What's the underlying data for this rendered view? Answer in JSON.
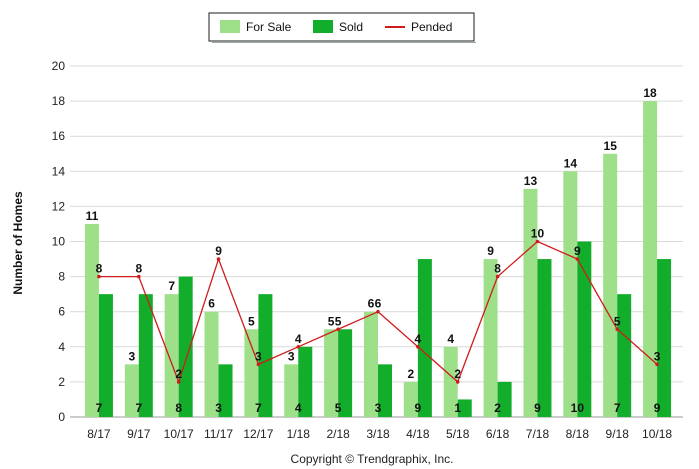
{
  "chart_data": {
    "type": "bar",
    "ylabel": "Number of Homes",
    "xlabel": "",
    "ylim": [
      0,
      20
    ],
    "y_ticks": [
      0,
      2,
      4,
      6,
      8,
      10,
      12,
      14,
      16,
      18,
      20
    ],
    "grid": "horizontal",
    "legend_position": "top-center",
    "categories": [
      "8/17",
      "9/17",
      "10/17",
      "11/17",
      "12/17",
      "1/18",
      "2/18",
      "3/18",
      "4/18",
      "5/18",
      "6/18",
      "7/18",
      "8/18",
      "9/18",
      "10/18"
    ],
    "series": [
      {
        "name": "For Sale",
        "type": "bar",
        "color": "#9ee08a",
        "values": [
          11,
          3,
          7,
          6,
          5,
          3,
          5,
          6,
          2,
          4,
          9,
          13,
          14,
          15,
          18
        ]
      },
      {
        "name": "Sold",
        "type": "bar",
        "color": "#12ad2b",
        "values": [
          7,
          7,
          8,
          3,
          7,
          4,
          5,
          3,
          9,
          1,
          2,
          9,
          10,
          7,
          9
        ]
      },
      {
        "name": "Pended",
        "type": "line",
        "color": "#d01c1c",
        "values": [
          8,
          8,
          2,
          9,
          3,
          4,
          5,
          6,
          4,
          2,
          8,
          10,
          9,
          5,
          3
        ]
      }
    ]
  },
  "footer": {
    "copyright": "Copyright © Trendgraphix, Inc."
  }
}
